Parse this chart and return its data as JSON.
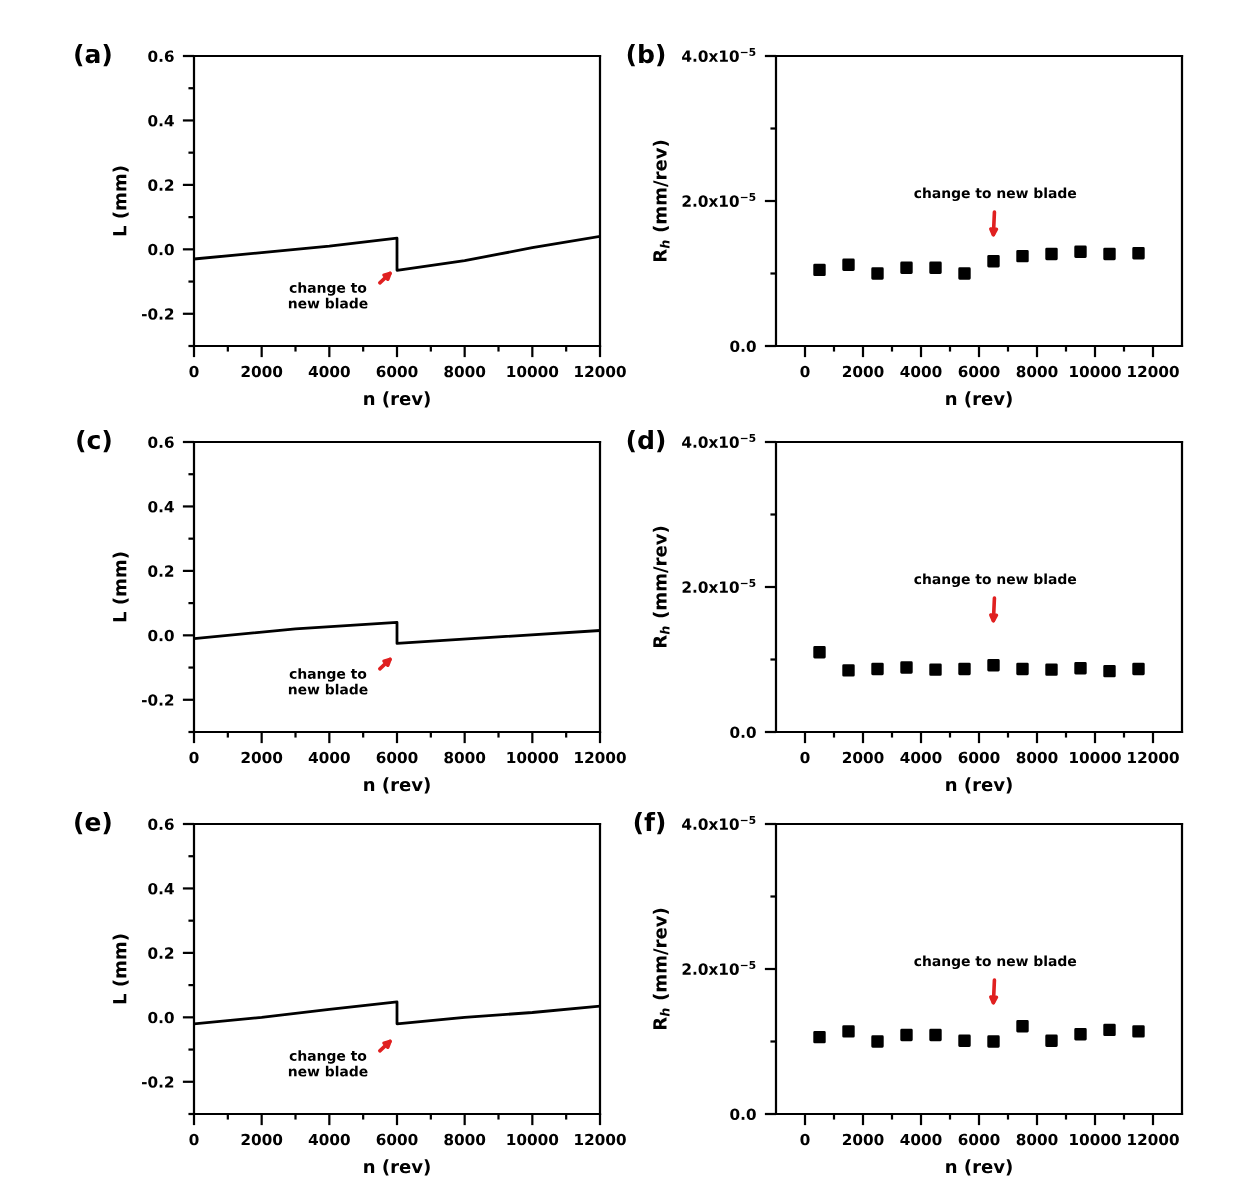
{
  "chart_data": [
    {
      "type": "line",
      "title": "(a)",
      "xlabel": "n (rev)",
      "ylabel": "L (mm)",
      "xlim": [
        0,
        12000
      ],
      "ylim": [
        -0.3,
        0.6
      ],
      "xticks": [
        0,
        {
          "value": 1000,
          "label": null
        },
        2000,
        {
          "value": 3000,
          "label": null
        },
        4000,
        {
          "value": 5000,
          "label": null
        },
        6000,
        {
          "value": 7000,
          "label": null
        },
        8000,
        {
          "value": 9000,
          "label": null
        },
        10000,
        {
          "value": 11000,
          "label": null
        },
        12000
      ],
      "yticks": [
        {
          "value": -0.3,
          "label": null
        },
        -0.2,
        {
          "value": -0.1,
          "label": null
        },
        {
          "value": 0,
          "label": "0.0"
        },
        {
          "value": 0.1,
          "label": null
        },
        0.2,
        {
          "value": 0.3,
          "label": null
        },
        0.4,
        {
          "value": 0.5,
          "label": null
        },
        0.6
      ],
      "marker": "none",
      "line_style": "solid",
      "grid": false,
      "legend": false,
      "series": [
        {
          "color": "#000000",
          "x": [
            0,
            2000,
            4000,
            6000,
            6000,
            8000,
            10000,
            12000
          ],
          "values": [
            -0.03,
            -0.01,
            0.01,
            0.035,
            -0.065,
            -0.035,
            0.005,
            0.04
          ]
        }
      ],
      "annotations": [
        "change to\nnew blade"
      ]
    },
    {
      "type": "scatter",
      "title": "(b)",
      "xlabel": "n (rev)",
      "ylabel": "R$_{h}$ (mm/rev)",
      "xlim": [
        -1000,
        13000
      ],
      "ylim": [
        0,
        4e-05
      ],
      "xticks": [
        0,
        {
          "value": 1000,
          "label": null
        },
        2000,
        {
          "value": 3000,
          "label": null
        },
        4000,
        {
          "value": 5000,
          "label": null
        },
        6000,
        {
          "value": 7000,
          "label": null
        },
        8000,
        {
          "value": 9000,
          "label": null
        },
        10000,
        {
          "value": 11000,
          "label": null
        },
        12000
      ],
      "yticks": [
        {
          "value": 0,
          "label": "0.0"
        },
        {
          "value": 1e-05,
          "label": null
        },
        {
          "value": 2e-05,
          "label": "2.0x10$^{−5}$"
        },
        {
          "value": 3e-05,
          "label": null
        },
        {
          "value": 4e-05,
          "label": "4.0x10$^{−5}$"
        }
      ],
      "marker": "square",
      "grid": false,
      "legend": false,
      "series": [
        {
          "color": "#000000",
          "x": [
            500,
            1500,
            2500,
            3500,
            4500,
            5500,
            6500,
            7500,
            8500,
            9500,
            10500,
            11500
          ],
          "values": [
            1.05e-05,
            1.12e-05,
            1e-05,
            1.08e-05,
            1.08e-05,
            1e-05,
            1.17e-05,
            1.24e-05,
            1.27e-05,
            1.3e-05,
            1.27e-05,
            1.28e-05
          ]
        }
      ],
      "annotations": [
        "change to new blade"
      ]
    },
    {
      "type": "line",
      "title": "(c)",
      "xlabel": "n (rev)",
      "ylabel": "L (mm)",
      "xlim": [
        0,
        12000
      ],
      "ylim": [
        -0.3,
        0.6
      ],
      "xticks": [
        0,
        {
          "value": 1000,
          "label": null
        },
        2000,
        {
          "value": 3000,
          "label": null
        },
        4000,
        {
          "value": 5000,
          "label": null
        },
        6000,
        {
          "value": 7000,
          "label": null
        },
        8000,
        {
          "value": 9000,
          "label": null
        },
        10000,
        {
          "value": 11000,
          "label": null
        },
        12000
      ],
      "yticks": [
        {
          "value": -0.3,
          "label": null
        },
        -0.2,
        {
          "value": -0.1,
          "label": null
        },
        {
          "value": 0,
          "label": "0.0"
        },
        {
          "value": 0.1,
          "label": null
        },
        0.2,
        {
          "value": 0.3,
          "label": null
        },
        0.4,
        {
          "value": 0.5,
          "label": null
        },
        0.6
      ],
      "marker": "none",
      "line_style": "solid",
      "grid": false,
      "legend": false,
      "series": [
        {
          "color": "#000000",
          "x": [
            0,
            3000,
            6000,
            6000,
            9000,
            12000
          ],
          "values": [
            -0.01,
            0.02,
            0.04,
            -0.025,
            -0.005,
            0.015
          ]
        }
      ],
      "annotations": [
        "change to\nnew blade"
      ]
    },
    {
      "type": "scatter",
      "title": "(d)",
      "xlabel": "n (rev)",
      "ylabel": "R$_{h}$ (mm/rev)",
      "xlim": [
        -1000,
        13000
      ],
      "ylim": [
        0,
        4e-05
      ],
      "xticks": [
        0,
        {
          "value": 1000,
          "label": null
        },
        2000,
        {
          "value": 3000,
          "label": null
        },
        4000,
        {
          "value": 5000,
          "label": null
        },
        6000,
        {
          "value": 7000,
          "label": null
        },
        8000,
        {
          "value": 9000,
          "label": null
        },
        10000,
        {
          "value": 11000,
          "label": null
        },
        12000
      ],
      "yticks": [
        {
          "value": 0,
          "label": "0.0"
        },
        {
          "value": 1e-05,
          "label": null
        },
        {
          "value": 2e-05,
          "label": "2.0x10$^{−5}$"
        },
        {
          "value": 3e-05,
          "label": null
        },
        {
          "value": 4e-05,
          "label": "4.0x10$^{−5}$"
        }
      ],
      "marker": "square",
      "grid": false,
      "legend": false,
      "series": [
        {
          "color": "#000000",
          "x": [
            500,
            1500,
            2500,
            3500,
            4500,
            5500,
            6500,
            7500,
            8500,
            9500,
            10500,
            11500
          ],
          "values": [
            1.1e-05,
            8.5e-06,
            8.7e-06,
            8.9e-06,
            8.6e-06,
            8.7e-06,
            9.2e-06,
            8.7e-06,
            8.6e-06,
            8.8e-06,
            8.4e-06,
            8.7e-06
          ]
        }
      ],
      "annotations": [
        "change to new blade"
      ]
    },
    {
      "type": "line",
      "title": "(e)",
      "xlabel": "n (rev)",
      "ylabel": "L (mm)",
      "xlim": [
        0,
        12000
      ],
      "ylim": [
        -0.3,
        0.6
      ],
      "xticks": [
        0,
        {
          "value": 1000,
          "label": null
        },
        2000,
        {
          "value": 3000,
          "label": null
        },
        4000,
        {
          "value": 5000,
          "label": null
        },
        6000,
        {
          "value": 7000,
          "label": null
        },
        8000,
        {
          "value": 9000,
          "label": null
        },
        10000,
        {
          "value": 11000,
          "label": null
        },
        12000
      ],
      "yticks": [
        {
          "value": -0.3,
          "label": null
        },
        -0.2,
        {
          "value": -0.1,
          "label": null
        },
        {
          "value": 0,
          "label": "0.0"
        },
        {
          "value": 0.1,
          "label": null
        },
        0.2,
        {
          "value": 0.3,
          "label": null
        },
        0.4,
        {
          "value": 0.5,
          "label": null
        },
        0.6
      ],
      "marker": "none",
      "line_style": "solid",
      "grid": false,
      "legend": false,
      "series": [
        {
          "color": "#000000",
          "x": [
            0,
            2000,
            4000,
            6000,
            6000,
            8000,
            10000,
            12000
          ],
          "values": [
            -0.02,
            0.0,
            0.025,
            0.048,
            -0.02,
            0.0,
            0.015,
            0.035
          ]
        }
      ],
      "annotations": [
        "change to\nnew blade"
      ]
    },
    {
      "type": "scatter",
      "title": "(f)",
      "xlabel": "n (rev)",
      "ylabel": "R$_{h}$ (mm/rev)",
      "xlim": [
        -1000,
        13000
      ],
      "ylim": [
        0,
        4e-05
      ],
      "xticks": [
        0,
        {
          "value": 1000,
          "label": null
        },
        2000,
        {
          "value": 3000,
          "label": null
        },
        4000,
        {
          "value": 5000,
          "label": null
        },
        6000,
        {
          "value": 7000,
          "label": null
        },
        8000,
        {
          "value": 9000,
          "label": null
        },
        10000,
        {
          "value": 11000,
          "label": null
        },
        12000
      ],
      "yticks": [
        {
          "value": 0,
          "label": "0.0"
        },
        {
          "value": 1e-05,
          "label": null
        },
        {
          "value": 2e-05,
          "label": "2.0x10$^{−5}$"
        },
        {
          "value": 3e-05,
          "label": null
        },
        {
          "value": 4e-05,
          "label": "4.0x10$^{−5}$"
        }
      ],
      "marker": "square",
      "grid": false,
      "legend": false,
      "series": [
        {
          "color": "#000000",
          "x": [
            500,
            1500,
            2500,
            3500,
            4500,
            5500,
            6500,
            7500,
            8500,
            9500,
            10500,
            11500
          ],
          "values": [
            1.06e-05,
            1.14e-05,
            1e-05,
            1.09e-05,
            1.09e-05,
            1.01e-05,
            1e-05,
            1.21e-05,
            1.01e-05,
            1.1e-05,
            1.16e-05,
            1.14e-05
          ]
        }
      ],
      "annotations": [
        "change to new blade"
      ]
    }
  ]
}
